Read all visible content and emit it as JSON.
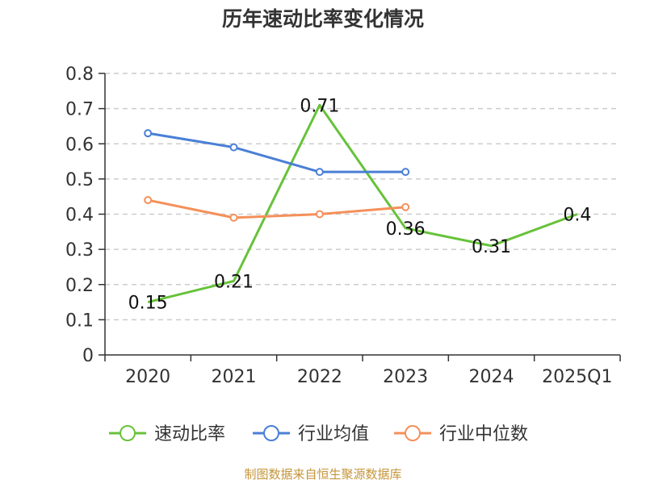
{
  "chart_data": {
    "type": "line",
    "title": "历年速动比率变化情况",
    "categories": [
      "2020",
      "2021",
      "2022",
      "2023",
      "2024",
      "2025Q1"
    ],
    "ylim": [
      0,
      0.8
    ],
    "yticks": [
      "0",
      "0.1",
      "0.2",
      "0.3",
      "0.4",
      "0.5",
      "0.6",
      "0.7",
      "0.8"
    ],
    "grid": true,
    "legend_position": "bottom",
    "series": [
      {
        "name": "速动比率",
        "color": "#67c23a",
        "values": [
          0.15,
          0.21,
          0.71,
          0.36,
          0.31,
          0.4
        ],
        "labels": [
          "0.15",
          "0.21",
          "0.71",
          "0.36",
          "0.31",
          "0.4"
        ],
        "show_labels": true,
        "show_markers": false
      },
      {
        "name": "行业均值",
        "color": "#4a7fd6",
        "values": [
          0.63,
          0.59,
          0.52,
          0.52,
          null,
          null
        ],
        "show_labels": false,
        "show_markers": true
      },
      {
        "name": "行业中位数",
        "color": "#f4905a",
        "values": [
          0.44,
          0.39,
          0.4,
          0.42,
          null,
          null
        ],
        "show_labels": false,
        "show_markers": true
      }
    ]
  },
  "footer": "制图数据来自恒生聚源数据库"
}
